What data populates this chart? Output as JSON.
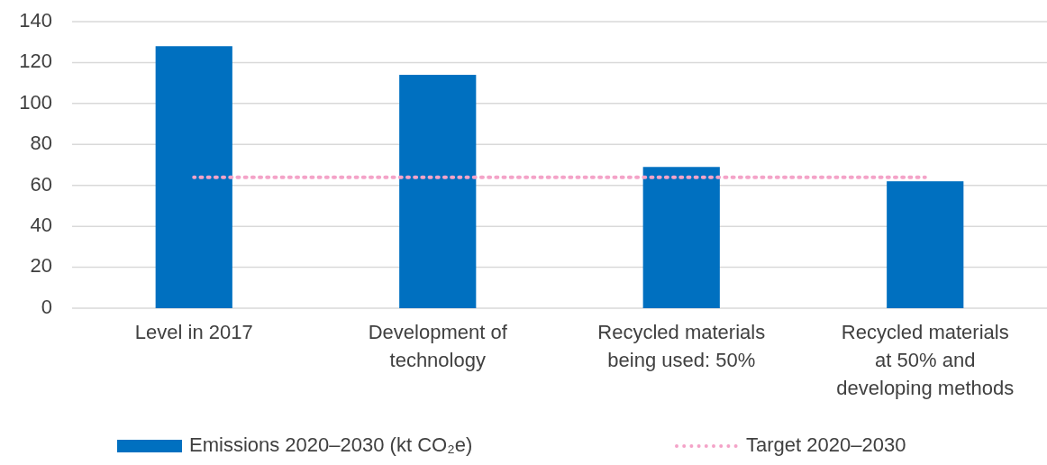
{
  "chart_data": {
    "type": "bar",
    "categories": [
      "Level in 2017",
      "Development of technology",
      "Recycled materials being used: 50%",
      "Recycled materials at 50% and developing methods"
    ],
    "series": [
      {
        "name": "Emissions 2020–2030 (kt CO₂e)",
        "color": "#0070c0",
        "values": [
          128,
          114,
          69,
          62
        ]
      },
      {
        "name": "Target 2020–2030",
        "type": "line",
        "color": "#f4a3c8",
        "line_style": "dotted",
        "marker": "none",
        "values": [
          64,
          64,
          64,
          64
        ]
      }
    ],
    "ylim": [
      0,
      140
    ],
    "yticks": [
      0,
      20,
      40,
      60,
      80,
      100,
      120,
      140
    ],
    "grid": "y",
    "legend": "bottom"
  }
}
